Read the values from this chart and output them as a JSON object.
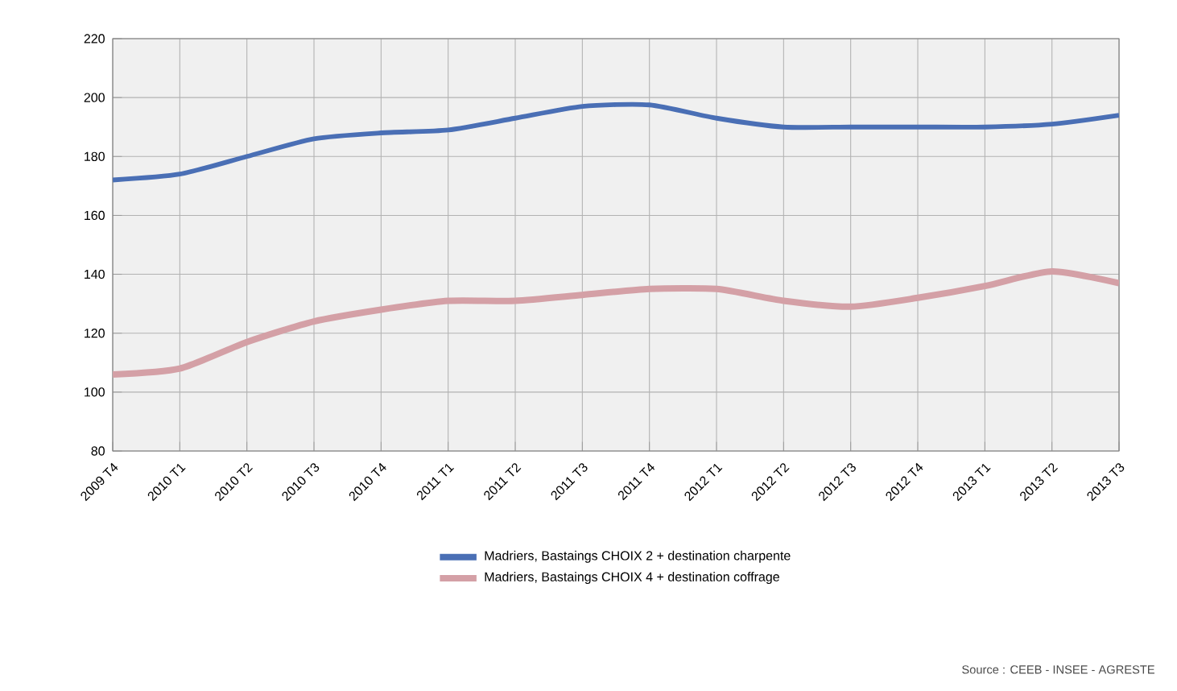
{
  "chart_data": {
    "type": "line",
    "categories": [
      "2009 T4",
      "2010 T1",
      "2010 T2",
      "2010 T3",
      "2010 T4",
      "2011 T1",
      "2011 T2",
      "2011 T3",
      "2011 T4",
      "2012 T1",
      "2012 T2",
      "2012 T3",
      "2012 T4",
      "2013 T1",
      "2013 T2",
      "2013 T3"
    ],
    "series": [
      {
        "name": "Madriers, Bastaings CHOIX 2 + destination charpente",
        "color": "#4a6fb5",
        "values": [
          172,
          174,
          180,
          186,
          188,
          189,
          193,
          197,
          197.5,
          193,
          190,
          190,
          190,
          190,
          191,
          194
        ]
      },
      {
        "name": "Madriers, Bastaings CHOIX 4 + destination coffrage",
        "color": "#d4a0a6",
        "values": [
          106,
          108,
          117,
          124,
          128,
          131,
          131,
          133,
          135,
          135,
          131,
          129,
          132,
          136,
          141,
          137
        ]
      }
    ],
    "ylim": [
      80,
      220
    ],
    "yticks": [
      80,
      100,
      120,
      140,
      160,
      180,
      200,
      220
    ],
    "grid": true,
    "legend": "bottom",
    "marker": "none",
    "line_style": "solid",
    "annotations": [
      "Source : CEEB - INSEE - AGRESTE"
    ]
  }
}
